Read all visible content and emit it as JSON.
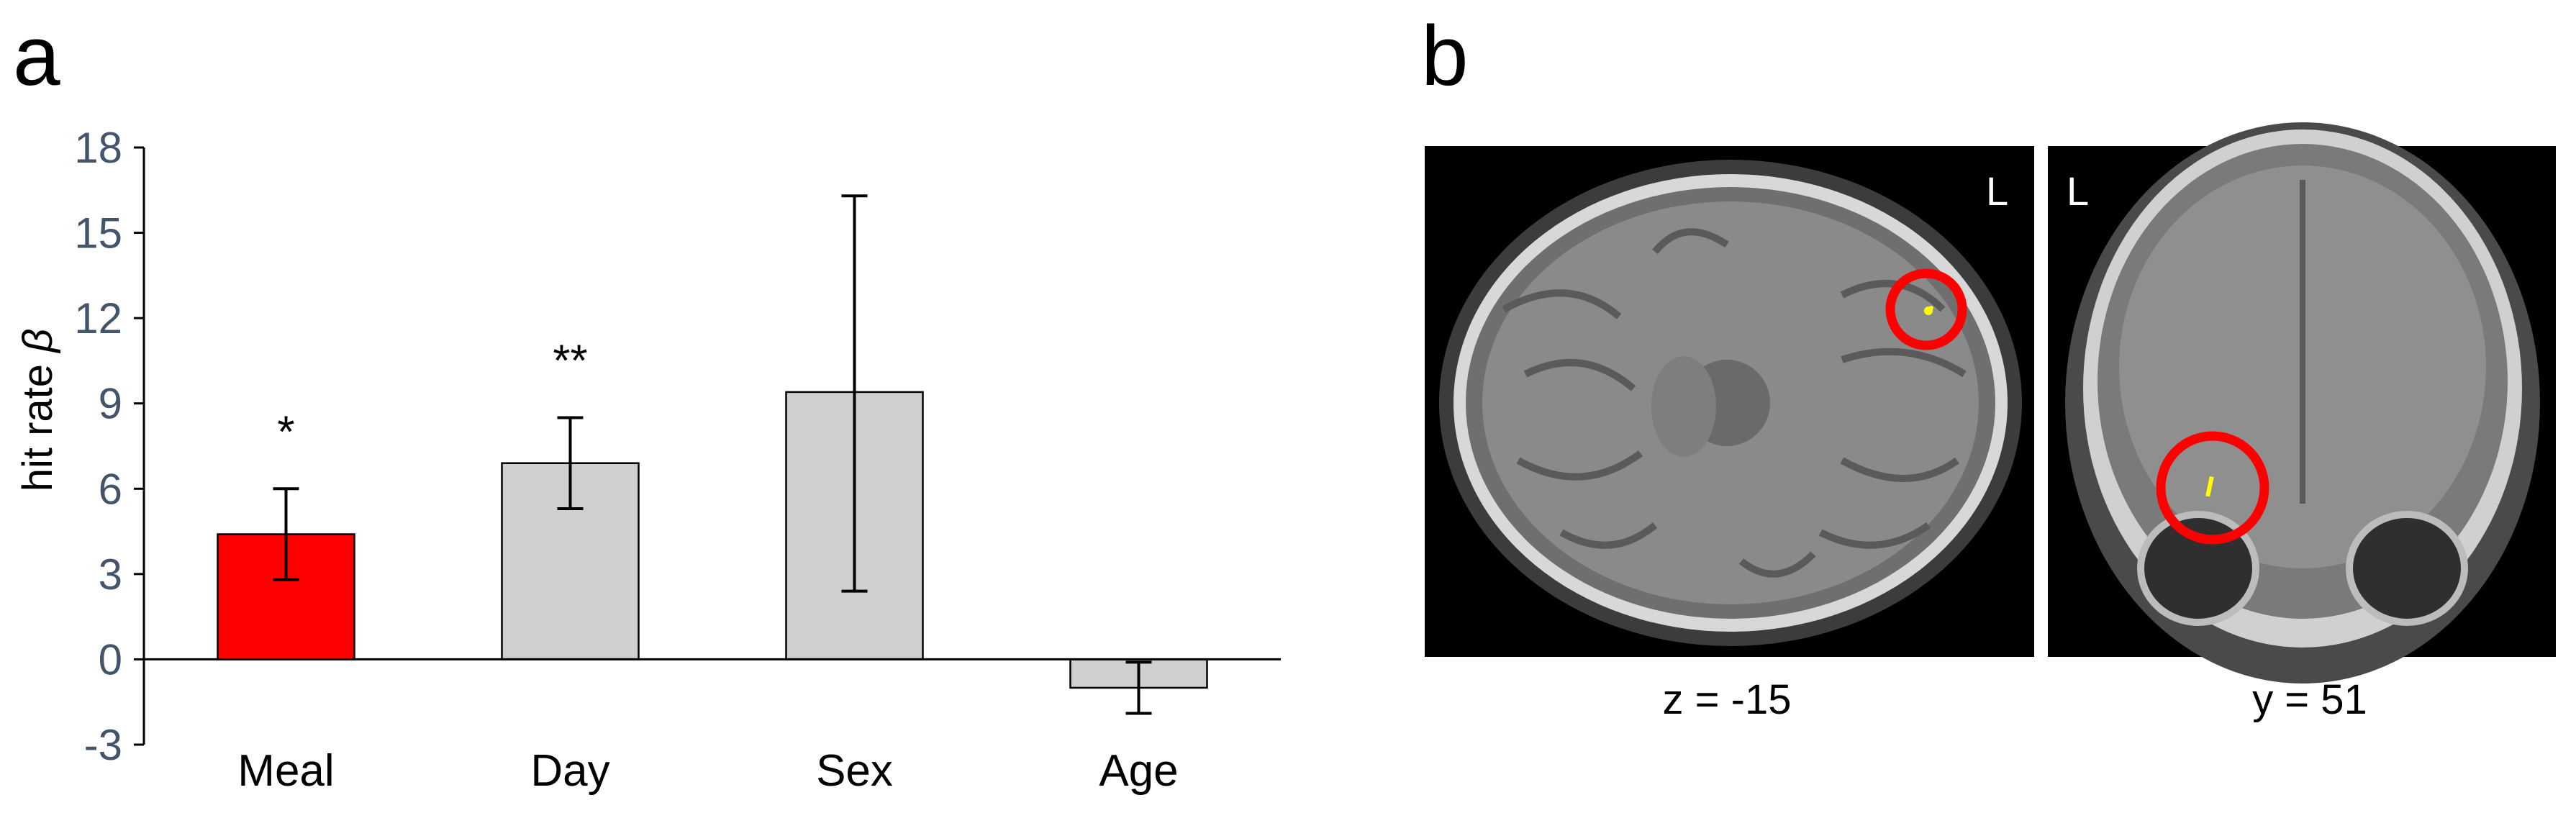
{
  "panel_a": {
    "letter": "a"
  },
  "panel_b": {
    "letter": "b",
    "images": [
      {
        "orientation_label": "L",
        "coordinate": "z = -15",
        "view": "axial",
        "marker_color": "#ff0000",
        "activation_color": "#ffff00"
      },
      {
        "orientation_label": "L",
        "coordinate": "y = 51",
        "view": "coronal",
        "marker_color": "#ff0000",
        "activation_color": "#ffff00"
      }
    ]
  },
  "chart_data": {
    "type": "bar",
    "categories": [
      "Meal",
      "Day",
      "Sex",
      "Age"
    ],
    "values": [
      4.4,
      6.9,
      9.4,
      -1.0
    ],
    "error_low": [
      2.8,
      5.3,
      2.4,
      -1.9
    ],
    "error_high": [
      6.0,
      8.5,
      16.3,
      -0.1
    ],
    "significance": [
      "*",
      "**",
      "",
      ""
    ],
    "bar_colors": [
      "#ff0000",
      "#d0cece",
      "#d0cece",
      "#d0cece"
    ],
    "ylabel": "hit rate",
    "ylabel_symbol": "β",
    "yticks": [
      -3,
      0,
      3,
      6,
      9,
      12,
      15,
      18
    ],
    "ylim": [
      -3,
      18
    ],
    "grid": false,
    "legend": "none"
  }
}
